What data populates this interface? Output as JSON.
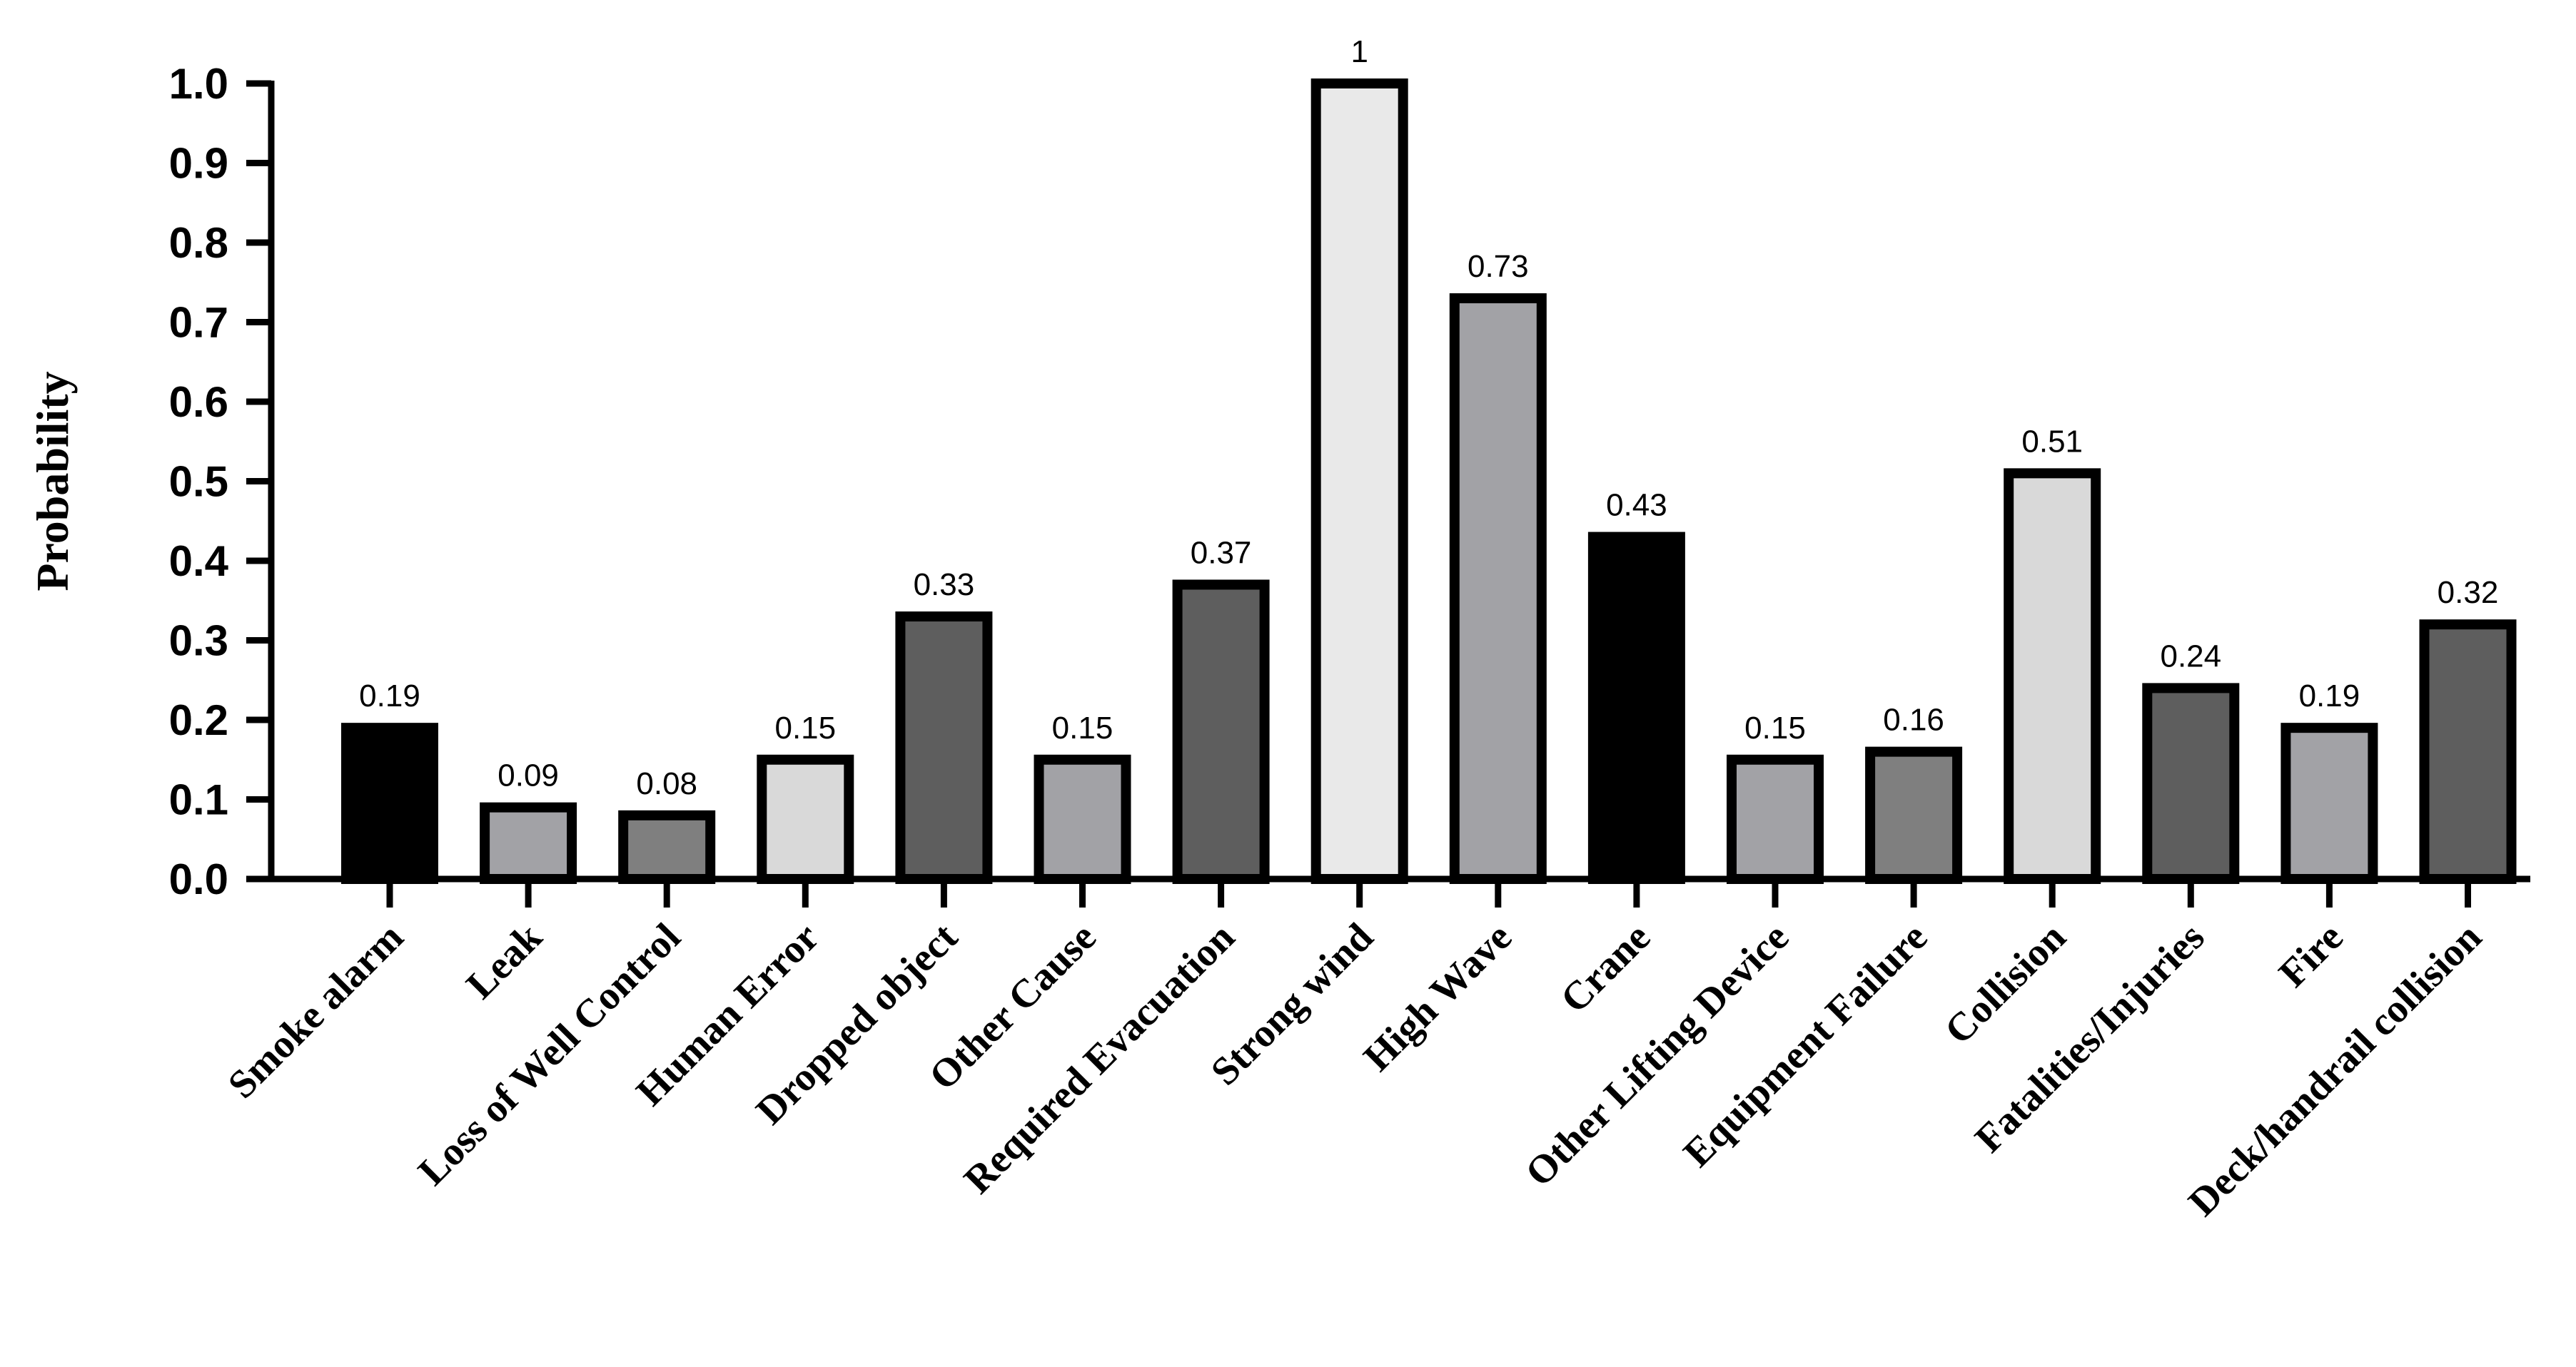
{
  "chart_data": {
    "type": "bar",
    "title": "",
    "xlabel": "",
    "ylabel": "Probability",
    "ylim": [
      0,
      1.0
    ],
    "yticks": [
      "0.0",
      "0.1",
      "0.2",
      "0.3",
      "0.4",
      "0.5",
      "0.6",
      "0.7",
      "0.8",
      "0.9",
      "1.0"
    ],
    "grid": false,
    "legend": "none",
    "categories": [
      "Smoke alarm",
      "Leak",
      "Loss of Well Control",
      "Human Error",
      "Dropped object",
      "Other Cause",
      "Required Evacuation",
      "Strong wind",
      "High Wave",
      "Crane",
      "Other Lifting Device",
      "Equipment Failure",
      "Collision",
      "Fatalities/Injuries",
      "Fire",
      "Deck/handrail collision"
    ],
    "values": [
      0.19,
      0.09,
      0.08,
      0.15,
      0.33,
      0.15,
      0.37,
      1,
      0.73,
      0.43,
      0.15,
      0.16,
      0.51,
      0.24,
      0.19,
      0.32
    ],
    "data_labels": [
      "0.19",
      "0.09",
      "0.08",
      "0.15",
      "0.33",
      "0.15",
      "0.37",
      "1",
      "0.73",
      "0.43",
      "0.15",
      "0.16",
      "0.51",
      "0.24",
      "0.19",
      "0.32"
    ],
    "colors": [
      "#000000",
      "#a2a2a6",
      "#7f7f7f",
      "#d9d9d9",
      "#5e5e5e",
      "#a2a2a6",
      "#5e5e5e",
      "#e9e9e9",
      "#a2a2a6",
      "#000000",
      "#a2a2a6",
      "#7f7f7f",
      "#d9d9d9",
      "#5e5e5e",
      "#a2a2a6",
      "#5e5e5e"
    ]
  }
}
